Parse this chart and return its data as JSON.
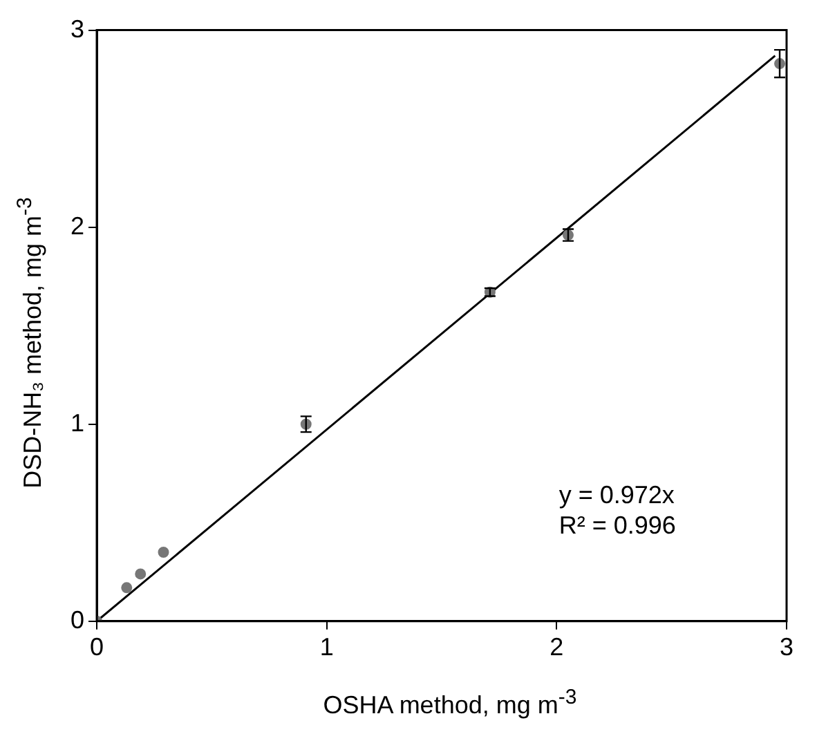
{
  "chart_data": {
    "type": "scatter",
    "xlabel": "OSHA method, mg m$^{-3}$",
    "ylabel": "DSD-NH₃ method, mg m$^{-3}$",
    "xlim": [
      0,
      3
    ],
    "xticks": [
      0,
      1,
      2,
      3
    ],
    "ylim": [
      0,
      3
    ],
    "yticks": [
      0,
      1,
      2,
      3
    ],
    "grid": false,
    "legend": false,
    "marker": "circle",
    "annotations": [
      "y = 0.972x",
      "R² = 0.996"
    ],
    "series": [
      {
        "type": "scatter",
        "color": "#777777",
        "x": [
          0,
          0.13,
          0.19,
          0.29,
          0.91,
          1.71,
          2.05,
          2.97
        ],
        "values": [
          0,
          0.17,
          0.24,
          0.35,
          1.0,
          1.67,
          1.96,
          2.83
        ],
        "errors": [
          null,
          null,
          null,
          null,
          0.04,
          0.02,
          0.03,
          0.07
        ]
      },
      {
        "type": "line",
        "color": "#000000",
        "x": [
          0,
          2.95
        ],
        "values": [
          0,
          2.87
        ],
        "marker": "none",
        "line_style": "solid"
      }
    ]
  }
}
